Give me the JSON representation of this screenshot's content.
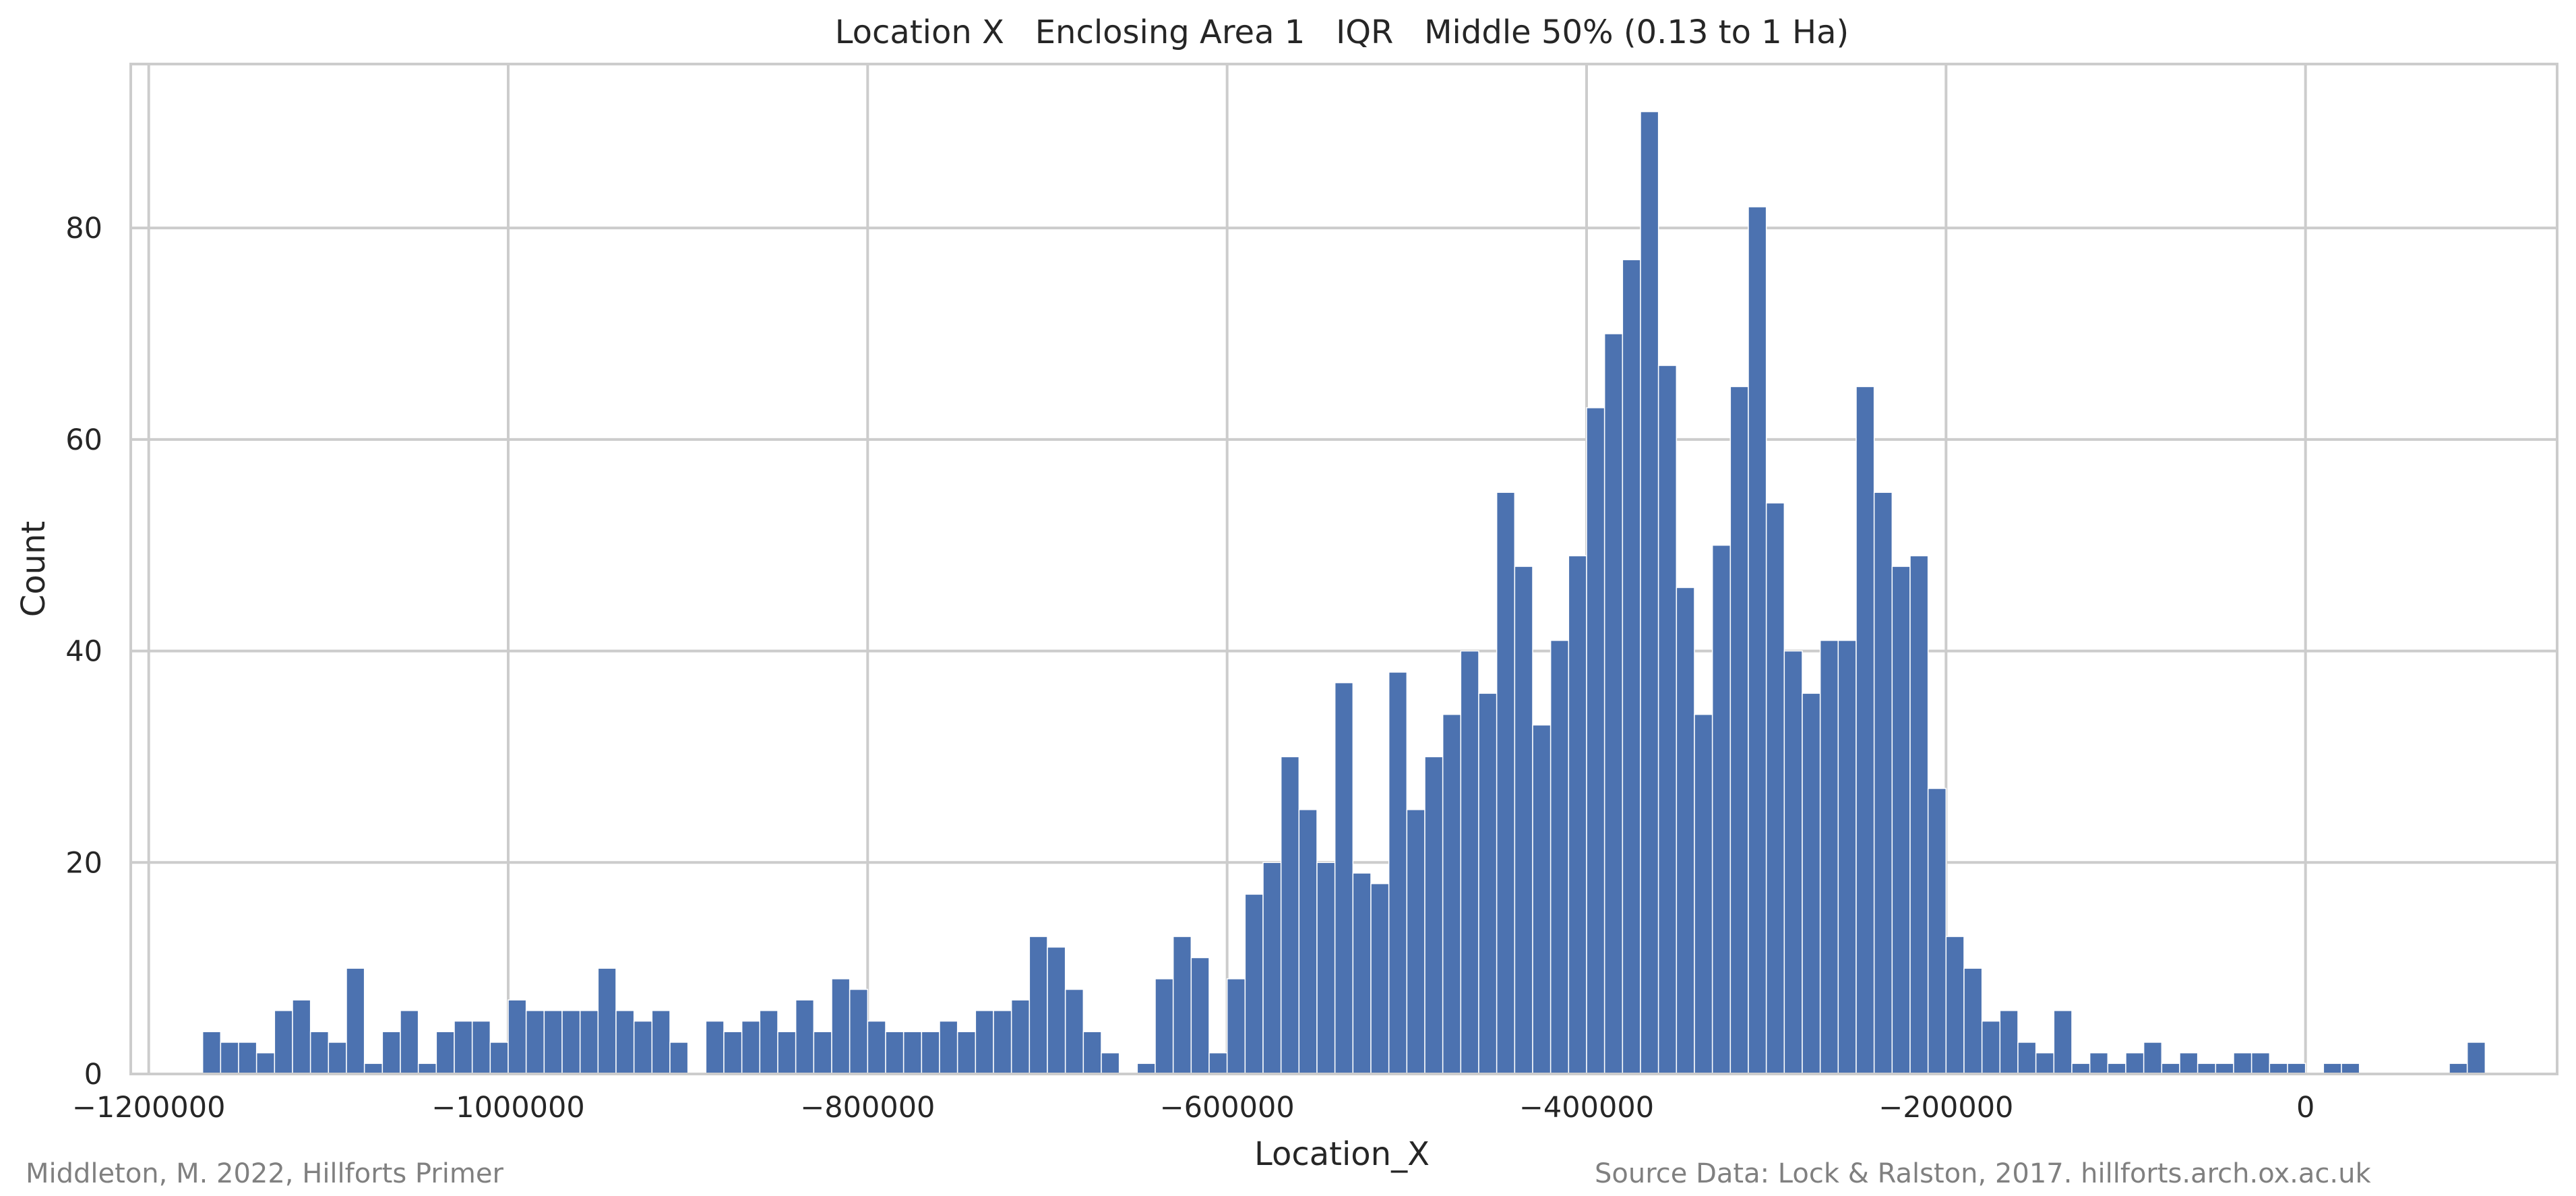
{
  "chart_data": {
    "type": "bar",
    "title": "Location X   Enclosing Area 1   IQR   Middle 50% (0.13 to 1 Ha)",
    "xlabel": "Location_X",
    "ylabel": "Count",
    "xlim": [
      -1210000,
      140000
    ],
    "ylim": [
      0,
      95.5
    ],
    "xticks": [
      -1200000,
      -1000000,
      -800000,
      -600000,
      -400000,
      -200000,
      0
    ],
    "xtick_labels": [
      "−1200000",
      "−1000000",
      "−800000",
      "−600000",
      "−400000",
      "−200000",
      "0"
    ],
    "yticks": [
      0,
      20,
      40,
      60,
      80
    ],
    "grid": true,
    "bar_color": "#4c72b0",
    "bin_width": 10000,
    "bin_start": -1170000,
    "counts": [
      4,
      3,
      3,
      2,
      6,
      7,
      4,
      3,
      10,
      1,
      4,
      6,
      1,
      4,
      5,
      5,
      3,
      7,
      6,
      6,
      6,
      6,
      10,
      6,
      5,
      6,
      3,
      0,
      5,
      4,
      5,
      6,
      4,
      7,
      4,
      9,
      8,
      5,
      4,
      4,
      4,
      5,
      4,
      6,
      6,
      7,
      13,
      12,
      8,
      4,
      2,
      0,
      1,
      9,
      13,
      11,
      2,
      9,
      17,
      20,
      30,
      25,
      20,
      37,
      19,
      18,
      38,
      25,
      30,
      34,
      40,
      36,
      55,
      48,
      33,
      41,
      49,
      63,
      70,
      77,
      91,
      67,
      46,
      34,
      50,
      65,
      82,
      54,
      40,
      36,
      41,
      41,
      65,
      55,
      48,
      49,
      27,
      13,
      10,
      5,
      6,
      3,
      2,
      6,
      1,
      2,
      1,
      2,
      3,
      1,
      2,
      1,
      1,
      2,
      2,
      1,
      1,
      0,
      1,
      1,
      0,
      0,
      0,
      0,
      0,
      1,
      3
    ]
  },
  "footer": {
    "credit": "Middleton, M. 2022, Hillforts Primer",
    "source": "Source Data: Lock & Ralston, 2017. hillforts.arch.ox.ac.uk"
  }
}
